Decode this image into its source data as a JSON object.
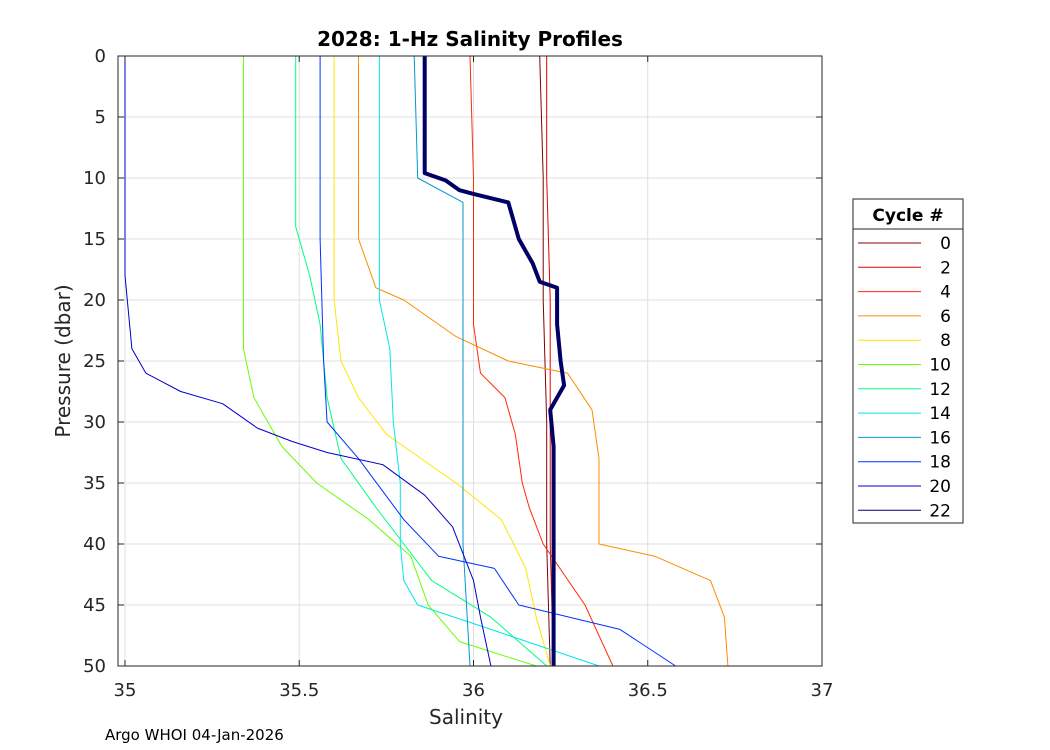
{
  "chart_data": {
    "type": "line",
    "title": "2028: 1-Hz Salinity Profiles",
    "xlabel": "Salinity",
    "ylabel": "Pressure (dbar)",
    "xlim": [
      34.98,
      37.0
    ],
    "ylim": [
      0,
      50
    ],
    "y_reversed": true,
    "grid": true,
    "xticks": [
      35,
      35.5,
      36,
      36.5,
      37
    ],
    "xtick_labels": [
      "35",
      "35.5",
      "36",
      "36.5",
      "37"
    ],
    "yticks": [
      0,
      5,
      10,
      15,
      20,
      25,
      30,
      35,
      40,
      45,
      50
    ],
    "ytick_labels": [
      "0",
      "5",
      "10",
      "15",
      "20",
      "25",
      "30",
      "35",
      "40",
      "45",
      "50"
    ],
    "legend": {
      "title": "Cycle #",
      "position": "outside-right"
    },
    "highlight_series": "22",
    "series": [
      {
        "name": "0",
        "color": "#800000",
        "points": [
          [
            36.19,
            0
          ],
          [
            36.2,
            10
          ],
          [
            36.2,
            20
          ],
          [
            36.21,
            30
          ],
          [
            36.21,
            40
          ],
          [
            36.22,
            50
          ]
        ]
      },
      {
        "name": "2",
        "color": "#e60000",
        "points": [
          [
            36.21,
            0
          ],
          [
            36.21,
            10
          ],
          [
            36.22,
            20
          ],
          [
            36.22,
            30
          ],
          [
            36.22,
            40
          ],
          [
            36.23,
            50
          ]
        ]
      },
      {
        "name": "4",
        "color": "#ff2a00",
        "points": [
          [
            35.99,
            0
          ],
          [
            36.0,
            10
          ],
          [
            36.0,
            22
          ],
          [
            36.02,
            26
          ],
          [
            36.09,
            28
          ],
          [
            36.12,
            31
          ],
          [
            36.14,
            35
          ],
          [
            36.16,
            37
          ],
          [
            36.2,
            40
          ],
          [
            36.32,
            45
          ],
          [
            36.4,
            50
          ]
        ]
      },
      {
        "name": "6",
        "color": "#ff8c00",
        "points": [
          [
            35.67,
            0
          ],
          [
            35.67,
            15
          ],
          [
            35.72,
            19
          ],
          [
            35.8,
            20
          ],
          [
            35.95,
            23
          ],
          [
            36.1,
            25
          ],
          [
            36.27,
            26
          ],
          [
            36.34,
            29
          ],
          [
            36.36,
            33
          ],
          [
            36.36,
            40
          ],
          [
            36.52,
            41
          ],
          [
            36.68,
            43
          ],
          [
            36.72,
            46
          ],
          [
            36.73,
            50
          ]
        ]
      },
      {
        "name": "8",
        "color": "#ffe600",
        "points": [
          [
            35.6,
            0
          ],
          [
            35.6,
            20
          ],
          [
            35.62,
            25
          ],
          [
            35.67,
            28
          ],
          [
            35.75,
            31
          ],
          [
            35.85,
            33
          ],
          [
            35.95,
            35
          ],
          [
            36.08,
            38
          ],
          [
            36.15,
            42
          ],
          [
            36.18,
            46
          ],
          [
            36.22,
            50
          ]
        ]
      },
      {
        "name": "10",
        "color": "#66ff00",
        "points": [
          [
            35.34,
            0
          ],
          [
            35.34,
            24
          ],
          [
            35.37,
            28
          ],
          [
            35.45,
            32
          ],
          [
            35.55,
            35
          ],
          [
            35.7,
            38
          ],
          [
            35.82,
            41
          ],
          [
            35.87,
            45
          ],
          [
            35.96,
            48
          ],
          [
            36.18,
            50
          ]
        ]
      },
      {
        "name": "12",
        "color": "#00ff80",
        "points": [
          [
            35.49,
            0
          ],
          [
            35.49,
            14
          ],
          [
            35.53,
            18
          ],
          [
            35.56,
            22
          ],
          [
            35.58,
            28
          ],
          [
            35.62,
            33
          ],
          [
            35.72,
            37
          ],
          [
            35.8,
            40
          ],
          [
            35.88,
            43
          ],
          [
            36.05,
            46
          ],
          [
            36.21,
            50
          ]
        ]
      },
      {
        "name": "14",
        "color": "#00e6e6",
        "points": [
          [
            35.73,
            0
          ],
          [
            35.73,
            20
          ],
          [
            35.76,
            24
          ],
          [
            35.77,
            30
          ],
          [
            35.79,
            35
          ],
          [
            35.79,
            40
          ],
          [
            35.8,
            43
          ],
          [
            35.84,
            45
          ],
          [
            36.05,
            47
          ],
          [
            36.36,
            50
          ]
        ]
      },
      {
        "name": "16",
        "color": "#0099cc",
        "points": [
          [
            35.83,
            0
          ],
          [
            35.84,
            10
          ],
          [
            35.97,
            12
          ],
          [
            35.97,
            40
          ],
          [
            35.98,
            45
          ],
          [
            35.99,
            50
          ]
        ]
      },
      {
        "name": "18",
        "color": "#0033ff",
        "points": [
          [
            35.56,
            0
          ],
          [
            35.56,
            15
          ],
          [
            35.57,
            25
          ],
          [
            35.58,
            30
          ],
          [
            35.67,
            33
          ],
          [
            35.8,
            38
          ],
          [
            35.9,
            41
          ],
          [
            36.06,
            42
          ],
          [
            36.13,
            45
          ],
          [
            36.42,
            47
          ],
          [
            36.58,
            50
          ]
        ]
      },
      {
        "name": "20",
        "color": "#0000cc",
        "points": [
          [
            35.0,
            0
          ],
          [
            35.0,
            18
          ],
          [
            35.02,
            24
          ],
          [
            35.06,
            26
          ],
          [
            35.16,
            27.5
          ],
          [
            35.28,
            28.5
          ],
          [
            35.38,
            30.5
          ],
          [
            35.48,
            31.6
          ],
          [
            35.58,
            32.5
          ],
          [
            35.74,
            33.5
          ],
          [
            35.86,
            36
          ],
          [
            35.94,
            38.6
          ],
          [
            36.0,
            43
          ],
          [
            36.02,
            46
          ],
          [
            36.05,
            50
          ]
        ]
      },
      {
        "name": "22",
        "color": "#000066",
        "points": [
          [
            35.86,
            0
          ],
          [
            35.86,
            9.6
          ],
          [
            35.92,
            10.2
          ],
          [
            35.96,
            11
          ],
          [
            36.0,
            11.3
          ],
          [
            36.1,
            12
          ],
          [
            36.13,
            15
          ],
          [
            36.17,
            17
          ],
          [
            36.19,
            18.5
          ],
          [
            36.24,
            19
          ],
          [
            36.24,
            22
          ],
          [
            36.25,
            25
          ],
          [
            36.26,
            27
          ],
          [
            36.22,
            29
          ],
          [
            36.23,
            32
          ],
          [
            36.23,
            36
          ],
          [
            36.23,
            40
          ],
          [
            36.23,
            45
          ],
          [
            36.23,
            50
          ]
        ]
      }
    ]
  },
  "footer": {
    "text": "Argo WHOI 04-Jan-2026"
  }
}
